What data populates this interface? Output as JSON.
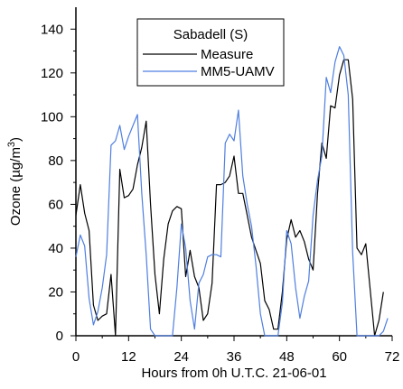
{
  "chart_data": {
    "type": "line",
    "title": "",
    "xlabel": "Hours from 0h U.T.C. 21-06-01",
    "ylabel": "Ozone (µg/m3)",
    "ylabel_parts": {
      "main": "Ozone (µg/m",
      "sup": "3",
      "close": ")"
    },
    "xlim": [
      0,
      72
    ],
    "ylim": [
      0,
      150
    ],
    "x_ticks": [
      0,
      12,
      24,
      36,
      48,
      60,
      72
    ],
    "y_ticks": [
      0,
      20,
      40,
      60,
      80,
      100,
      120,
      140
    ],
    "grid": false,
    "legend": {
      "title": "Sabadell (S)",
      "placement": "top-center"
    },
    "series": [
      {
        "name": "Measure",
        "color": "#000000",
        "x": [
          0,
          1,
          2,
          3,
          4,
          5,
          6,
          7,
          8,
          9,
          10,
          11,
          12,
          13,
          14,
          15,
          16,
          17,
          18,
          19,
          20,
          21,
          22,
          23,
          24,
          25,
          26,
          27,
          28,
          29,
          30,
          31,
          32,
          33,
          34,
          35,
          36,
          37,
          38,
          39,
          40,
          41,
          42,
          43,
          44,
          45,
          46,
          47,
          48,
          49,
          50,
          51,
          52,
          53,
          54,
          55,
          56,
          57,
          58,
          59,
          60,
          61,
          62,
          63,
          64,
          65,
          66,
          67,
          68,
          69,
          70
        ],
        "values": [
          55,
          69,
          56,
          48,
          14,
          7,
          9,
          10,
          28,
          0,
          76,
          63,
          64,
          67,
          78,
          86,
          98,
          60,
          28,
          10,
          35,
          51,
          57,
          59,
          58,
          27,
          39,
          27,
          22,
          7,
          10,
          24,
          69,
          69,
          70,
          73,
          82,
          65,
          65,
          55,
          45,
          39,
          33,
          16,
          12,
          3,
          3,
          20,
          44,
          53,
          45,
          48,
          43,
          35,
          30,
          65,
          88,
          81,
          105,
          104,
          119,
          126,
          126,
          108,
          40,
          37,
          42,
          21,
          0,
          7,
          20
        ]
      },
      {
        "name": "MM5-UAMV",
        "color": "#4f7fe0",
        "x": [
          0,
          1,
          2,
          3,
          4,
          5,
          6,
          7,
          8,
          9,
          10,
          11,
          12,
          13,
          14,
          15,
          16,
          17,
          18,
          19,
          20,
          21,
          22,
          23,
          24,
          25,
          26,
          27,
          28,
          29,
          30,
          31,
          32,
          33,
          34,
          35,
          36,
          37,
          38,
          39,
          40,
          41,
          42,
          43,
          44,
          45,
          46,
          47,
          48,
          49,
          50,
          51,
          52,
          53,
          54,
          55,
          56,
          57,
          58,
          59,
          60,
          61,
          62,
          63,
          64,
          65,
          66,
          67,
          68,
          69,
          70,
          71
        ],
        "values": [
          36,
          46,
          41,
          17,
          5,
          11,
          22,
          37,
          87,
          89,
          96,
          85,
          91,
          96,
          101,
          65,
          37,
          3,
          0,
          0,
          0,
          0,
          0,
          22,
          51,
          40,
          16,
          3,
          24,
          28,
          36,
          37,
          37,
          36,
          88,
          92,
          89,
          103,
          73,
          60,
          50,
          32,
          10,
          0,
          0,
          0,
          0,
          15,
          48,
          42,
          22,
          8,
          18,
          25,
          55,
          71,
          82,
          118,
          111,
          125,
          132,
          128,
          110,
          38,
          0,
          0,
          0,
          0,
          0,
          0,
          2,
          8
        ]
      }
    ]
  }
}
